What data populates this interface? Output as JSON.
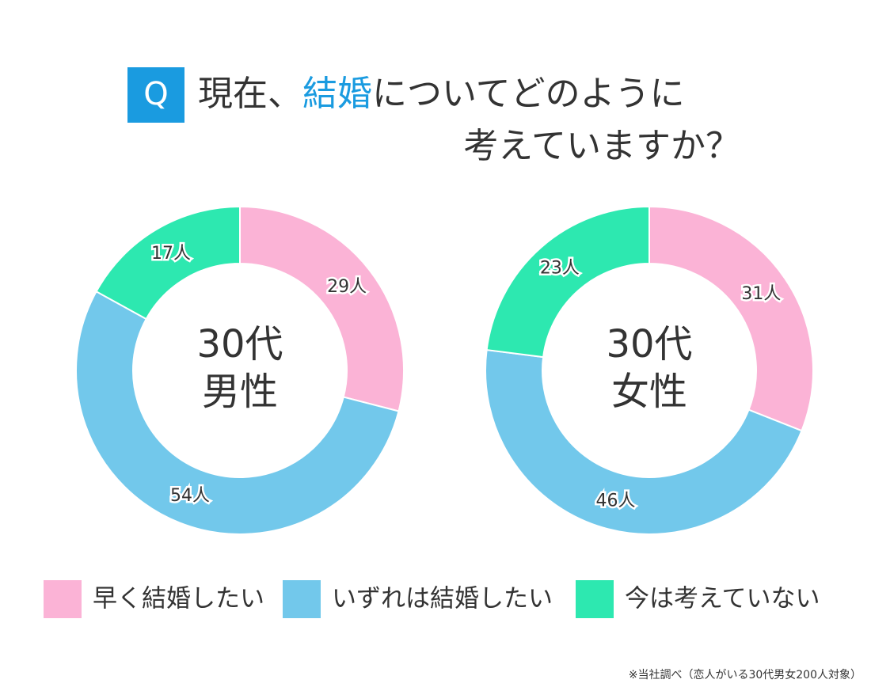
{
  "header": {
    "badge": "Q",
    "line1": [
      "現在、",
      "結婚",
      "についてどのように"
    ],
    "line2": "考えていますか？"
  },
  "chart_data": [
    {
      "type": "donut",
      "center_label": [
        "30代",
        "男性"
      ],
      "categories": [
        "早く結婚したい",
        "いずれは結婚したい",
        "今は考えていない"
      ],
      "colors": [
        "#fbb3d6",
        "#72c8eb",
        "#2de8b0"
      ],
      "values": [
        29,
        54,
        17
      ],
      "value_labels": [
        "29人",
        "54人",
        "17人"
      ]
    },
    {
      "type": "donut",
      "center_label": [
        "30代",
        "女性"
      ],
      "categories": [
        "早く結婚したい",
        "いずれは結婚したい",
        "今は考えていない"
      ],
      "colors": [
        "#fbb3d6",
        "#72c8eb",
        "#2de8b0"
      ],
      "values": [
        31,
        46,
        23
      ],
      "value_labels": [
        "31人",
        "46人",
        "23人"
      ]
    }
  ],
  "footnote": "※当社調べ（恋人がいる30代男女200人対象）"
}
